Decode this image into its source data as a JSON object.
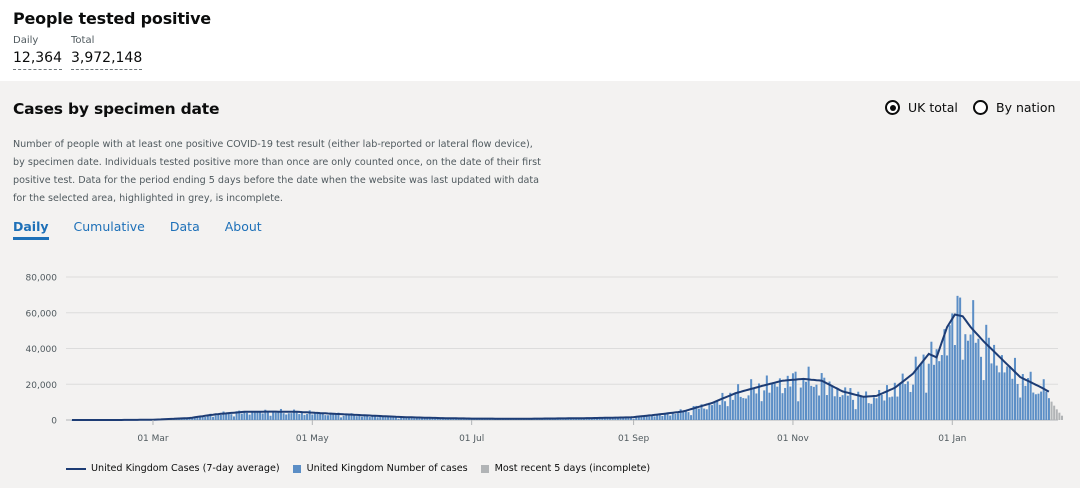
{
  "header": {
    "title": "People tested positive",
    "metrics": [
      {
        "label": "Daily",
        "value": "12,364"
      },
      {
        "label": "Total",
        "value": "3,972,148"
      }
    ]
  },
  "card": {
    "title": "Cases by specimen date",
    "radio_options": [
      {
        "label": "UK total",
        "selected": true
      },
      {
        "label": "By nation",
        "selected": false
      }
    ],
    "description": "Number of people with at least one positive COVID-19 test result (either lab-reported or lateral flow device), by specimen date. Individuals tested positive more than once are only counted once, on the date of their first positive test. Data for the period ending 5 days before the date when the website was last updated with data for the selected area, highlighted in grey, is incomplete.",
    "tabs": [
      {
        "label": "Daily",
        "active": true
      },
      {
        "label": "Cumulative",
        "active": false
      },
      {
        "label": "Data",
        "active": false
      },
      {
        "label": "About",
        "active": false
      }
    ]
  },
  "colors": {
    "bar": "#5b8ec6",
    "line": "#1d3c74",
    "incomplete": "#b1b4b6",
    "tab_accent": "#1d70b8"
  },
  "chart_data": {
    "type": "bar",
    "x_range": [
      "2020-01-30",
      "2021-02-12"
    ],
    "x_ticks": [
      "01 Mar",
      "01 May",
      "01 Jul",
      "01 Sep",
      "01 Nov",
      "01 Jan"
    ],
    "y_ticks": [
      "0",
      "20,000",
      "40,000",
      "60,000",
      "80,000"
    ],
    "ylim": [
      0,
      80000
    ],
    "grid": true,
    "incomplete_days": 5,
    "legend": [
      "United Kingdom Cases (7-day average)",
      "United Kingdom Number of cases",
      "Most recent 5 days (incomplete)"
    ],
    "anchors": [
      [
        "2020-01-30",
        0
      ],
      [
        "2020-02-20",
        30
      ],
      [
        "2020-03-01",
        150
      ],
      [
        "2020-03-15",
        1100
      ],
      [
        "2020-03-25",
        3200
      ],
      [
        "2020-04-05",
        4600
      ],
      [
        "2020-04-15",
        4700
      ],
      [
        "2020-04-25",
        4600
      ],
      [
        "2020-05-05",
        3800
      ],
      [
        "2020-05-20",
        2700
      ],
      [
        "2020-06-05",
        1600
      ],
      [
        "2020-06-20",
        1050
      ],
      [
        "2020-07-01",
        800
      ],
      [
        "2020-07-20",
        700
      ],
      [
        "2020-08-01",
        850
      ],
      [
        "2020-08-15",
        1050
      ],
      [
        "2020-08-31",
        1500
      ],
      [
        "2020-09-10",
        3000
      ],
      [
        "2020-09-20",
        4800
      ],
      [
        "2020-10-01",
        9500
      ],
      [
        "2020-10-10",
        15000
      ],
      [
        "2020-10-20",
        19000
      ],
      [
        "2020-10-28",
        22000
      ],
      [
        "2020-11-05",
        23000
      ],
      [
        "2020-11-12",
        22000
      ],
      [
        "2020-11-20",
        16000
      ],
      [
        "2020-11-28",
        13000
      ],
      [
        "2020-12-03",
        13500
      ],
      [
        "2020-12-10",
        18000
      ],
      [
        "2020-12-17",
        26000
      ],
      [
        "2020-12-23",
        37000
      ],
      [
        "2020-12-26",
        35000
      ],
      [
        "2020-12-30",
        52000
      ],
      [
        "2021-01-02",
        59000
      ],
      [
        "2021-01-05",
        58000
      ],
      [
        "2021-01-08",
        52000
      ],
      [
        "2021-01-13",
        44000
      ],
      [
        "2021-01-20",
        34000
      ],
      [
        "2021-01-27",
        24000
      ],
      [
        "2021-02-03",
        19000
      ],
      [
        "2021-02-12",
        12000
      ]
    ]
  }
}
